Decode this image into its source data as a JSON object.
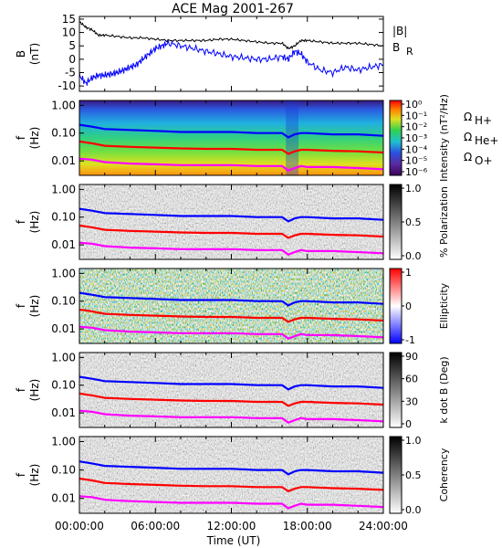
{
  "chart_data": {
    "type": "line",
    "title": "ACE Mag 2001-267",
    "xlabel": "Time (UT)",
    "x_ticks": [
      "00:00:00",
      "06:00:00",
      "12:00:00",
      "18:00:00",
      "24:00:00"
    ],
    "xlim_hours": [
      0,
      24
    ],
    "panels": [
      {
        "id": "field",
        "ylabel": [
          "B",
          "(nT)"
        ],
        "ylim": [
          -12,
          16
        ],
        "y_ticks": [
          "15",
          "10",
          "5",
          "0",
          "-5",
          "-10"
        ],
        "series": [
          {
            "name": "|B|",
            "color": "#000000",
            "x": [
              0,
              0.5,
              1,
              1.5,
              2,
              3,
              4,
              5,
              6,
              7,
              8,
              9,
              10,
              11,
              12,
              13,
              14,
              15,
              16,
              16.5,
              17,
              17.5,
              18,
              19,
              20,
              21,
              22,
              23,
              24
            ],
            "y": [
              14,
              12,
              11,
              9,
              9,
              8.5,
              8,
              8,
              7.5,
              7,
              7,
              7,
              7,
              7.5,
              7.5,
              7,
              6.5,
              6,
              6,
              4,
              5,
              7,
              7,
              6.5,
              6,
              6,
              6,
              5.5,
              5
            ]
          },
          {
            "name": "B_R",
            "color": "#0000ff",
            "x": [
              0,
              0.5,
              1,
              1.5,
              2,
              2.5,
              3,
              3.5,
              4,
              4.5,
              5,
              5.5,
              6,
              6.5,
              7,
              8,
              9,
              10,
              11,
              12,
              13,
              14,
              15,
              16,
              16.5,
              17,
              17.5,
              18,
              19,
              20,
              21,
              22,
              23,
              24
            ],
            "y": [
              -6,
              -9,
              -7,
              -6,
              -6,
              -5.5,
              -5,
              -4,
              -3,
              -2,
              0,
              2,
              4,
              5,
              6,
              5,
              4,
              3,
              2,
              1,
              0.5,
              0,
              0,
              1,
              0,
              3,
              2,
              -1,
              -4,
              -5,
              -3,
              -4,
              -3,
              -2
            ]
          }
        ]
      },
      {
        "id": "intensity",
        "ylabel": [
          "f",
          "(Hz)"
        ],
        "y_ticks": [
          "1.00",
          "0.10",
          "0.01"
        ],
        "colorbar_label": "Intensity (nT²/Hz)",
        "colorbar_ticks": [
          "10⁰",
          "10⁻¹",
          "10⁻²",
          "10⁻³",
          "10⁻⁴",
          "10⁻⁵",
          "10⁻⁶"
        ],
        "colorbar": "rainbow"
      },
      {
        "id": "polarization",
        "ylabel": [
          "f",
          "(Hz)"
        ],
        "y_ticks": [
          "1.00",
          "0.10",
          "0.01"
        ],
        "colorbar_label": "% Polarization",
        "colorbar_ticks": [
          "1.0",
          "0.5",
          "0.0"
        ],
        "colorbar": "gray"
      },
      {
        "id": "ellipticity",
        "ylabel": [
          "f",
          "(Hz)"
        ],
        "y_ticks": [
          "1.00",
          "0.10",
          "0.01"
        ],
        "colorbar_label": "Ellipticity",
        "colorbar_ticks": [
          "1",
          "0",
          "-1"
        ],
        "colorbar": "redblue"
      },
      {
        "id": "kdotb",
        "ylabel": [
          "f",
          "(Hz)"
        ],
        "y_ticks": [
          "1.00",
          "0.10",
          "0.01"
        ],
        "colorbar_label": "k dot B (Deg)",
        "colorbar_ticks": [
          "90",
          "60",
          "30",
          "0"
        ],
        "colorbar": "gray"
      },
      {
        "id": "coherency",
        "ylabel": [
          "f",
          "(Hz)"
        ],
        "y_ticks": [
          "1.00",
          "0.10",
          "0.01"
        ],
        "colorbar_label": "Coherency",
        "colorbar_ticks": [
          "1.0",
          "0.5",
          "0.0"
        ],
        "colorbar": "gray"
      }
    ],
    "gyrofrequency_lines": [
      {
        "name": "Ω_H+",
        "color": "#0000ff",
        "x": [
          0,
          1,
          2,
          4,
          6,
          8,
          10,
          12,
          14,
          16,
          16.5,
          17,
          17.5,
          18,
          20,
          22,
          24
        ],
        "y_hz": [
          0.2,
          0.17,
          0.14,
          0.13,
          0.12,
          0.11,
          0.11,
          0.11,
          0.1,
          0.1,
          0.07,
          0.09,
          0.1,
          0.1,
          0.09,
          0.09,
          0.08
        ]
      },
      {
        "name": "Ω_He+",
        "color": "#ff0000",
        "x": [
          0,
          1,
          2,
          4,
          6,
          8,
          10,
          12,
          14,
          16,
          16.5,
          17,
          17.5,
          18,
          20,
          22,
          24
        ],
        "y_hz": [
          0.05,
          0.043,
          0.035,
          0.032,
          0.03,
          0.028,
          0.027,
          0.027,
          0.025,
          0.025,
          0.018,
          0.022,
          0.025,
          0.025,
          0.023,
          0.022,
          0.02
        ]
      },
      {
        "name": "Ω_O+",
        "color": "#ff00ff",
        "x": [
          0,
          1,
          2,
          4,
          6,
          8,
          10,
          12,
          14,
          16,
          16.5,
          17,
          17.5,
          18,
          20,
          22,
          24
        ],
        "y_hz": [
          0.012,
          0.011,
          0.009,
          0.008,
          0.0075,
          0.007,
          0.007,
          0.007,
          0.0065,
          0.0065,
          0.0045,
          0.0055,
          0.0065,
          0.006,
          0.006,
          0.0055,
          0.005
        ]
      }
    ],
    "legend": {
      "field_panel": [
        {
          "text": "|B|",
          "color": "#000000"
        },
        {
          "text": "B",
          "sub": "R",
          "color": "#0000ff"
        }
      ],
      "intensity_panel": [
        {
          "text": "Ω",
          "sub": "H+",
          "color": "#0000ff"
        },
        {
          "text": "Ω",
          "sub": "He+",
          "color": "#ff0000"
        },
        {
          "text": "Ω",
          "sub": "O+",
          "color": "#ff00ff"
        }
      ]
    }
  }
}
